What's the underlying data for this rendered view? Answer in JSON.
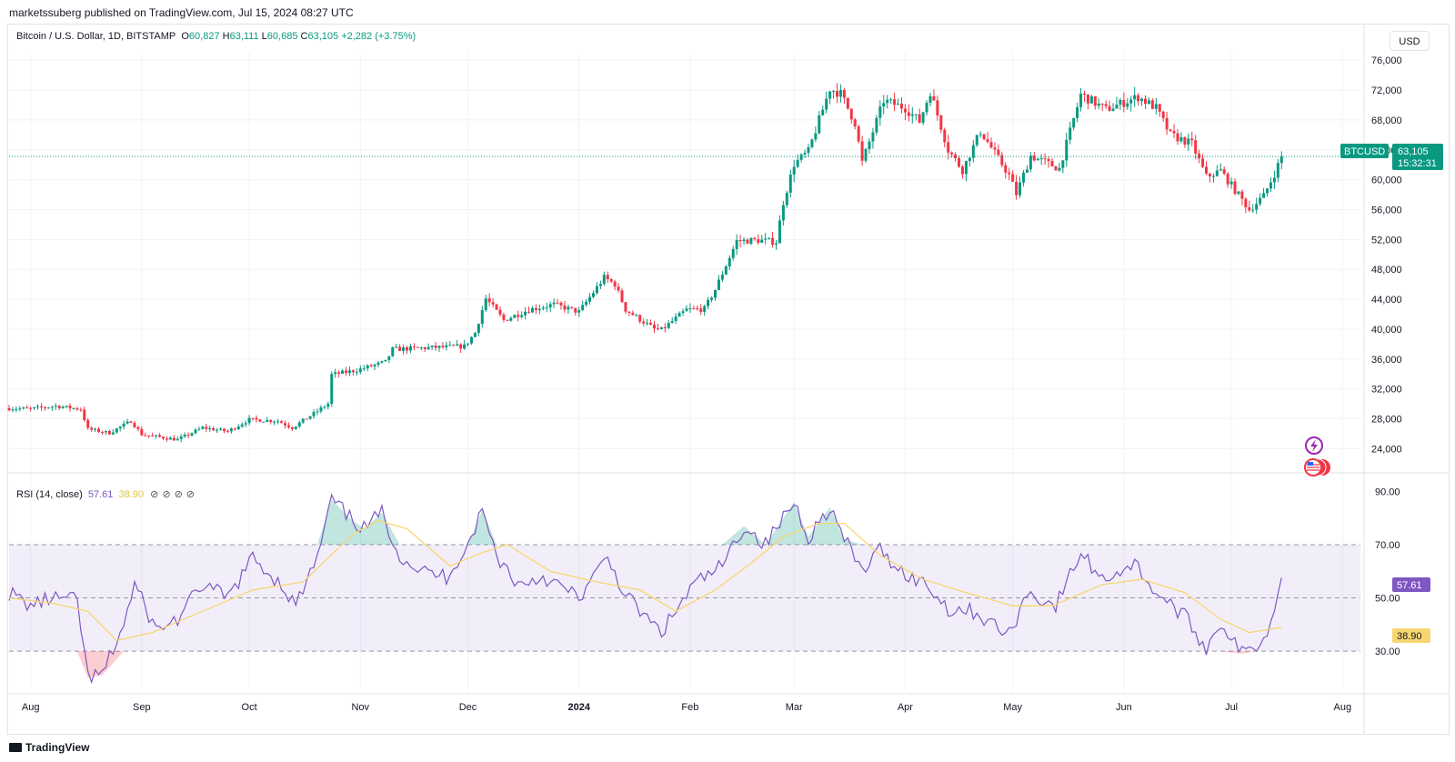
{
  "header": {
    "publisher_line": "marketssuberg published on TradingView.com, Jul 15, 2024 08:27 UTC"
  },
  "legend": {
    "symbol": "Bitcoin / U.S. Dollar, 1D, BITSTAMP",
    "o_key": "O",
    "o_val": "60,827",
    "h_key": "H",
    "h_val": "63,111",
    "l_key": "L",
    "l_val": "60,685",
    "c_key": "C",
    "c_val": "63,105",
    "change": "+2,282 (+3.75%)"
  },
  "toolbar": {
    "currency_label": "USD"
  },
  "price_axis": {
    "tick_labels": [
      "24,000",
      "28,000",
      "32,000",
      "36,000",
      "40,000",
      "44,000",
      "48,000",
      "52,000",
      "56,000",
      "60,000",
      "64,000",
      "68,000",
      "72,000",
      "76,000"
    ],
    "last_symbol": "BTCUSD",
    "last_value": "63,105",
    "countdown": "15:32:31"
  },
  "rsi": {
    "title": "RSI (14, close)",
    "rsi_value": "57.61",
    "ma_value": "38.90",
    "tick_labels": [
      "30.00",
      "50.00",
      "70.00",
      "90.00"
    ]
  },
  "time_axis": {
    "labels": [
      "Aug",
      "Sep",
      "Oct",
      "Nov",
      "Dec",
      "2024",
      "Feb",
      "Mar",
      "Apr",
      "May",
      "Jun",
      "Jul",
      "Aug"
    ]
  },
  "footer": {
    "brand": "TradingView"
  },
  "colors": {
    "up": "#089981",
    "down": "#f23645",
    "rsi_line": "#7e57c2",
    "rsi_ma": "#f7d672",
    "rsi_band": "#7e57c2",
    "last_price": "#089981"
  },
  "chart_data": [
    {
      "type": "candlestick",
      "title": "Bitcoin / U.S. Dollar, 1D, BITSTAMP",
      "ylim": [
        21000,
        77000
      ],
      "x_range": [
        "2023-07-26",
        "2024-08-06"
      ],
      "last_close": 63105,
      "close_points": [
        [
          "2023-07-26",
          29400
        ],
        [
          "2023-08-01",
          29300
        ],
        [
          "2023-08-08",
          29700
        ],
        [
          "2023-08-15",
          29300
        ],
        [
          "2023-08-17",
          26600
        ],
        [
          "2023-08-23",
          26100
        ],
        [
          "2023-08-29",
          27700
        ],
        [
          "2023-09-01",
          25900
        ],
        [
          "2023-09-11",
          25200
        ],
        [
          "2023-09-18",
          26800
        ],
        [
          "2023-09-25",
          26300
        ],
        [
          "2023-10-01",
          27900
        ],
        [
          "2023-10-09",
          27700
        ],
        [
          "2023-10-13",
          26800
        ],
        [
          "2023-10-19",
          28700
        ],
        [
          "2023-10-23",
          30000
        ],
        [
          "2023-10-24",
          33900
        ],
        [
          "2023-10-31",
          34500
        ],
        [
          "2023-11-08",
          35600
        ],
        [
          "2023-11-10",
          37300
        ],
        [
          "2023-11-20",
          37500
        ],
        [
          "2023-11-30",
          37700
        ],
        [
          "2023-12-03",
          39500
        ],
        [
          "2023-12-06",
          44100
        ],
        [
          "2023-12-11",
          41200
        ],
        [
          "2023-12-18",
          42600
        ],
        [
          "2023-12-25",
          43300
        ],
        [
          "2024-01-01",
          42300
        ],
        [
          "2024-01-08",
          46900
        ],
        [
          "2024-01-11",
          46000
        ],
        [
          "2024-01-14",
          42600
        ],
        [
          "2024-01-22",
          40000
        ],
        [
          "2024-01-24",
          39900
        ],
        [
          "2024-01-31",
          42600
        ],
        [
          "2024-02-05",
          42700
        ],
        [
          "2024-02-08",
          45300
        ],
        [
          "2024-02-14",
          51800
        ],
        [
          "2024-02-20",
          51900
        ],
        [
          "2024-02-25",
          51700
        ],
        [
          "2024-02-27",
          57000
        ],
        [
          "2024-03-01",
          62100
        ],
        [
          "2024-03-05",
          63800
        ],
        [
          "2024-03-11",
          72200
        ],
        [
          "2024-03-14",
          71500
        ],
        [
          "2024-03-18",
          67600
        ],
        [
          "2024-03-20",
          62300
        ],
        [
          "2024-03-26",
          70600
        ],
        [
          "2024-04-01",
          69600
        ],
        [
          "2024-04-05",
          67800
        ],
        [
          "2024-04-08",
          71800
        ],
        [
          "2024-04-13",
          64000
        ],
        [
          "2024-04-17",
          61300
        ],
        [
          "2024-04-22",
          66500
        ],
        [
          "2024-04-30",
          60600
        ],
        [
          "2024-05-02",
          58100
        ],
        [
          "2024-05-06",
          63200
        ],
        [
          "2024-05-14",
          61500
        ],
        [
          "2024-05-20",
          71400
        ],
        [
          "2024-05-27",
          69400
        ],
        [
          "2024-06-05",
          71100
        ],
        [
          "2024-06-10",
          69600
        ],
        [
          "2024-06-14",
          66000
        ],
        [
          "2024-06-20",
          64800
        ],
        [
          "2024-06-24",
          60400
        ],
        [
          "2024-06-28",
          61200
        ],
        [
          "2024-07-04",
          57300
        ],
        [
          "2024-07-06",
          56000
        ],
        [
          "2024-07-10",
          57800
        ],
        [
          "2024-07-13",
          60800
        ],
        [
          "2024-07-15",
          63105
        ]
      ],
      "reference_line": 63105
    },
    {
      "type": "line",
      "title": "RSI (14, close)",
      "ylim": [
        15,
        97
      ],
      "levels": [
        30,
        50,
        70
      ],
      "series": [
        {
          "name": "RSI",
          "last": 57.61,
          "points": [
            [
              "2023-07-26",
              52
            ],
            [
              "2023-08-01",
              47
            ],
            [
              "2023-08-07",
              50
            ],
            [
              "2023-08-14",
              49
            ],
            [
              "2023-08-17",
              20
            ],
            [
              "2023-08-21",
              21
            ],
            [
              "2023-08-27",
              40
            ],
            [
              "2023-08-30",
              55
            ],
            [
              "2023-09-05",
              38
            ],
            [
              "2023-09-11",
              42
            ],
            [
              "2023-09-18",
              55
            ],
            [
              "2023-09-25",
              50
            ],
            [
              "2023-10-02",
              65
            ],
            [
              "2023-10-10",
              55
            ],
            [
              "2023-10-14",
              47
            ],
            [
              "2023-10-20",
              65
            ],
            [
              "2023-10-24",
              87
            ],
            [
              "2023-10-29",
              80
            ],
            [
              "2023-11-02",
              76
            ],
            [
              "2023-11-07",
              82
            ],
            [
              "2023-11-12",
              66
            ],
            [
              "2023-11-18",
              60
            ],
            [
              "2023-11-25",
              58
            ],
            [
              "2023-12-01",
              70
            ],
            [
              "2023-12-05",
              83
            ],
            [
              "2023-12-09",
              66
            ],
            [
              "2023-12-15",
              55
            ],
            [
              "2023-12-22",
              58
            ],
            [
              "2024-01-01",
              50
            ],
            [
              "2024-01-09",
              65
            ],
            [
              "2024-01-14",
              51
            ],
            [
              "2024-01-20",
              42
            ],
            [
              "2024-01-24",
              37
            ],
            [
              "2024-02-02",
              55
            ],
            [
              "2024-02-10",
              62
            ],
            [
              "2024-02-16",
              77
            ],
            [
              "2024-02-22",
              70
            ],
            [
              "2024-03-01",
              86
            ],
            [
              "2024-03-05",
              73
            ],
            [
              "2024-03-11",
              84
            ],
            [
              "2024-03-15",
              72
            ],
            [
              "2024-03-20",
              60
            ],
            [
              "2024-03-25",
              68
            ],
            [
              "2024-04-01",
              59
            ],
            [
              "2024-04-07",
              55
            ],
            [
              "2024-04-13",
              46
            ],
            [
              "2024-04-20",
              45
            ],
            [
              "2024-04-30",
              36
            ],
            [
              "2024-05-05",
              52
            ],
            [
              "2024-05-13",
              47
            ],
            [
              "2024-05-20",
              67
            ],
            [
              "2024-05-26",
              57
            ],
            [
              "2024-06-04",
              63
            ],
            [
              "2024-06-10",
              52
            ],
            [
              "2024-06-18",
              43
            ],
            [
              "2024-06-24",
              31
            ],
            [
              "2024-06-28",
              41
            ],
            [
              "2024-07-04",
              29
            ],
            [
              "2024-07-08",
              32
            ],
            [
              "2024-07-12",
              40
            ],
            [
              "2024-07-15",
              57.61
            ]
          ]
        },
        {
          "name": "MA",
          "last": 38.9,
          "points": [
            [
              "2023-07-26",
              50
            ],
            [
              "2023-08-07",
              48
            ],
            [
              "2023-08-17",
              45
            ],
            [
              "2023-08-25",
              34
            ],
            [
              "2023-09-04",
              37
            ],
            [
              "2023-09-18",
              45
            ],
            [
              "2023-10-02",
              53
            ],
            [
              "2023-10-16",
              56
            ],
            [
              "2023-10-30",
              74
            ],
            [
              "2023-11-06",
              79
            ],
            [
              "2023-11-14",
              76
            ],
            [
              "2023-11-26",
              62
            ],
            [
              "2023-12-05",
              67
            ],
            [
              "2023-12-12",
              70
            ],
            [
              "2023-12-24",
              60
            ],
            [
              "2024-01-06",
              56
            ],
            [
              "2024-01-18",
              53
            ],
            [
              "2024-01-28",
              45
            ],
            [
              "2024-02-08",
              53
            ],
            [
              "2024-02-18",
              63
            ],
            [
              "2024-02-27",
              73
            ],
            [
              "2024-03-08",
              78
            ],
            [
              "2024-03-15",
              78
            ],
            [
              "2024-03-25",
              66
            ],
            [
              "2024-04-06",
              57
            ],
            [
              "2024-04-18",
              52
            ],
            [
              "2024-05-01",
              47
            ],
            [
              "2024-05-12",
              47
            ],
            [
              "2024-05-26",
              55
            ],
            [
              "2024-06-06",
              57
            ],
            [
              "2024-06-18",
              52
            ],
            [
              "2024-06-28",
              42
            ],
            [
              "2024-07-06",
              37
            ],
            [
              "2024-07-15",
              38.9
            ]
          ]
        }
      ]
    }
  ]
}
